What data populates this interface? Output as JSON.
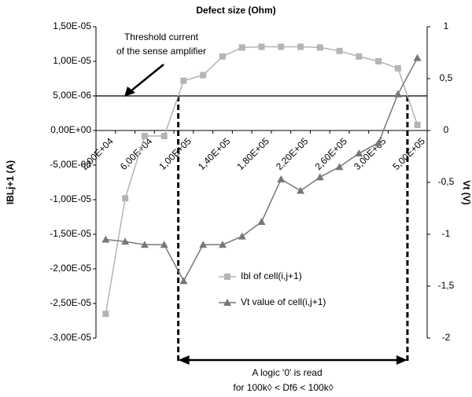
{
  "chart_data": {
    "type": "line",
    "title": "Defect size (Ohm)",
    "y_label": "IBLj+1 (A)",
    "y2_label": "Vt (V)",
    "categories": [
      "2,00E+04",
      null,
      "6,00E+04",
      null,
      "1,00E+05",
      null,
      "1,40E+05",
      null,
      "1,80E+05",
      null,
      "2,20E+05",
      null,
      "2,60E+05",
      null,
      "3,00E+05",
      null,
      "5,00E+05"
    ],
    "series": [
      {
        "name": "Ibl of cell(i,j+1)",
        "color": "#b4b4b4",
        "marker": "square",
        "values": [
          -2.65e-05,
          -9.8e-06,
          -8e-07,
          -8e-07,
          7.2e-06,
          8e-06,
          1.07e-05,
          1.2e-05,
          1.21e-05,
          1.21e-05,
          1.21e-05,
          1.2e-05,
          1.15e-05,
          1.07e-05,
          1e-05,
          9e-06,
          8e-07
        ]
      },
      {
        "name": "Vt value of cell(i,j+1)",
        "color": "#777777",
        "marker": "triangle",
        "axis": "y2",
        "values": [
          -1.05,
          -1.07,
          -1.1,
          -1.1,
          -1.45,
          -1.1,
          -1.1,
          -1.02,
          -0.88,
          -0.47,
          -0.58,
          -0.45,
          -0.35,
          -0.22,
          -0.12,
          0.35,
          0.7
        ]
      }
    ],
    "ylim": [
      -3e-05,
      1.5e-05
    ],
    "yticks": [
      {
        "value": 1.5e-05,
        "label": "1,50E-05"
      },
      {
        "value": 1e-05,
        "label": "1,00E-05"
      },
      {
        "value": 5e-06,
        "label": "5,00E-06"
      },
      {
        "value": 0,
        "label": "0,00E+00"
      },
      {
        "value": -5e-06,
        "label": "-5,00E-06"
      },
      {
        "value": -1e-05,
        "label": "-1,00E-05"
      },
      {
        "value": -1.5e-05,
        "label": "-1,50E-05"
      },
      {
        "value": -2e-05,
        "label": "-2,00E-05"
      },
      {
        "value": -2.5e-05,
        "label": "-2,50E-05"
      },
      {
        "value": -3e-05,
        "label": "-3,00E-05"
      }
    ],
    "y2lim": [
      -2,
      1
    ],
    "y2ticks": [
      1,
      {
        "value": 0.5,
        "label": "0,5"
      },
      0,
      {
        "value": -0.5,
        "label": "-0,5"
      },
      -1,
      {
        "value": -1.5,
        "label": "-1,5"
      },
      -2
    ],
    "threshold": 5e-06,
    "annotations": [
      "Threshold current",
      "of the sense amplifier",
      "A logic '0' is read",
      "for 100k◊  < Df6 < 100k◊"
    ]
  }
}
